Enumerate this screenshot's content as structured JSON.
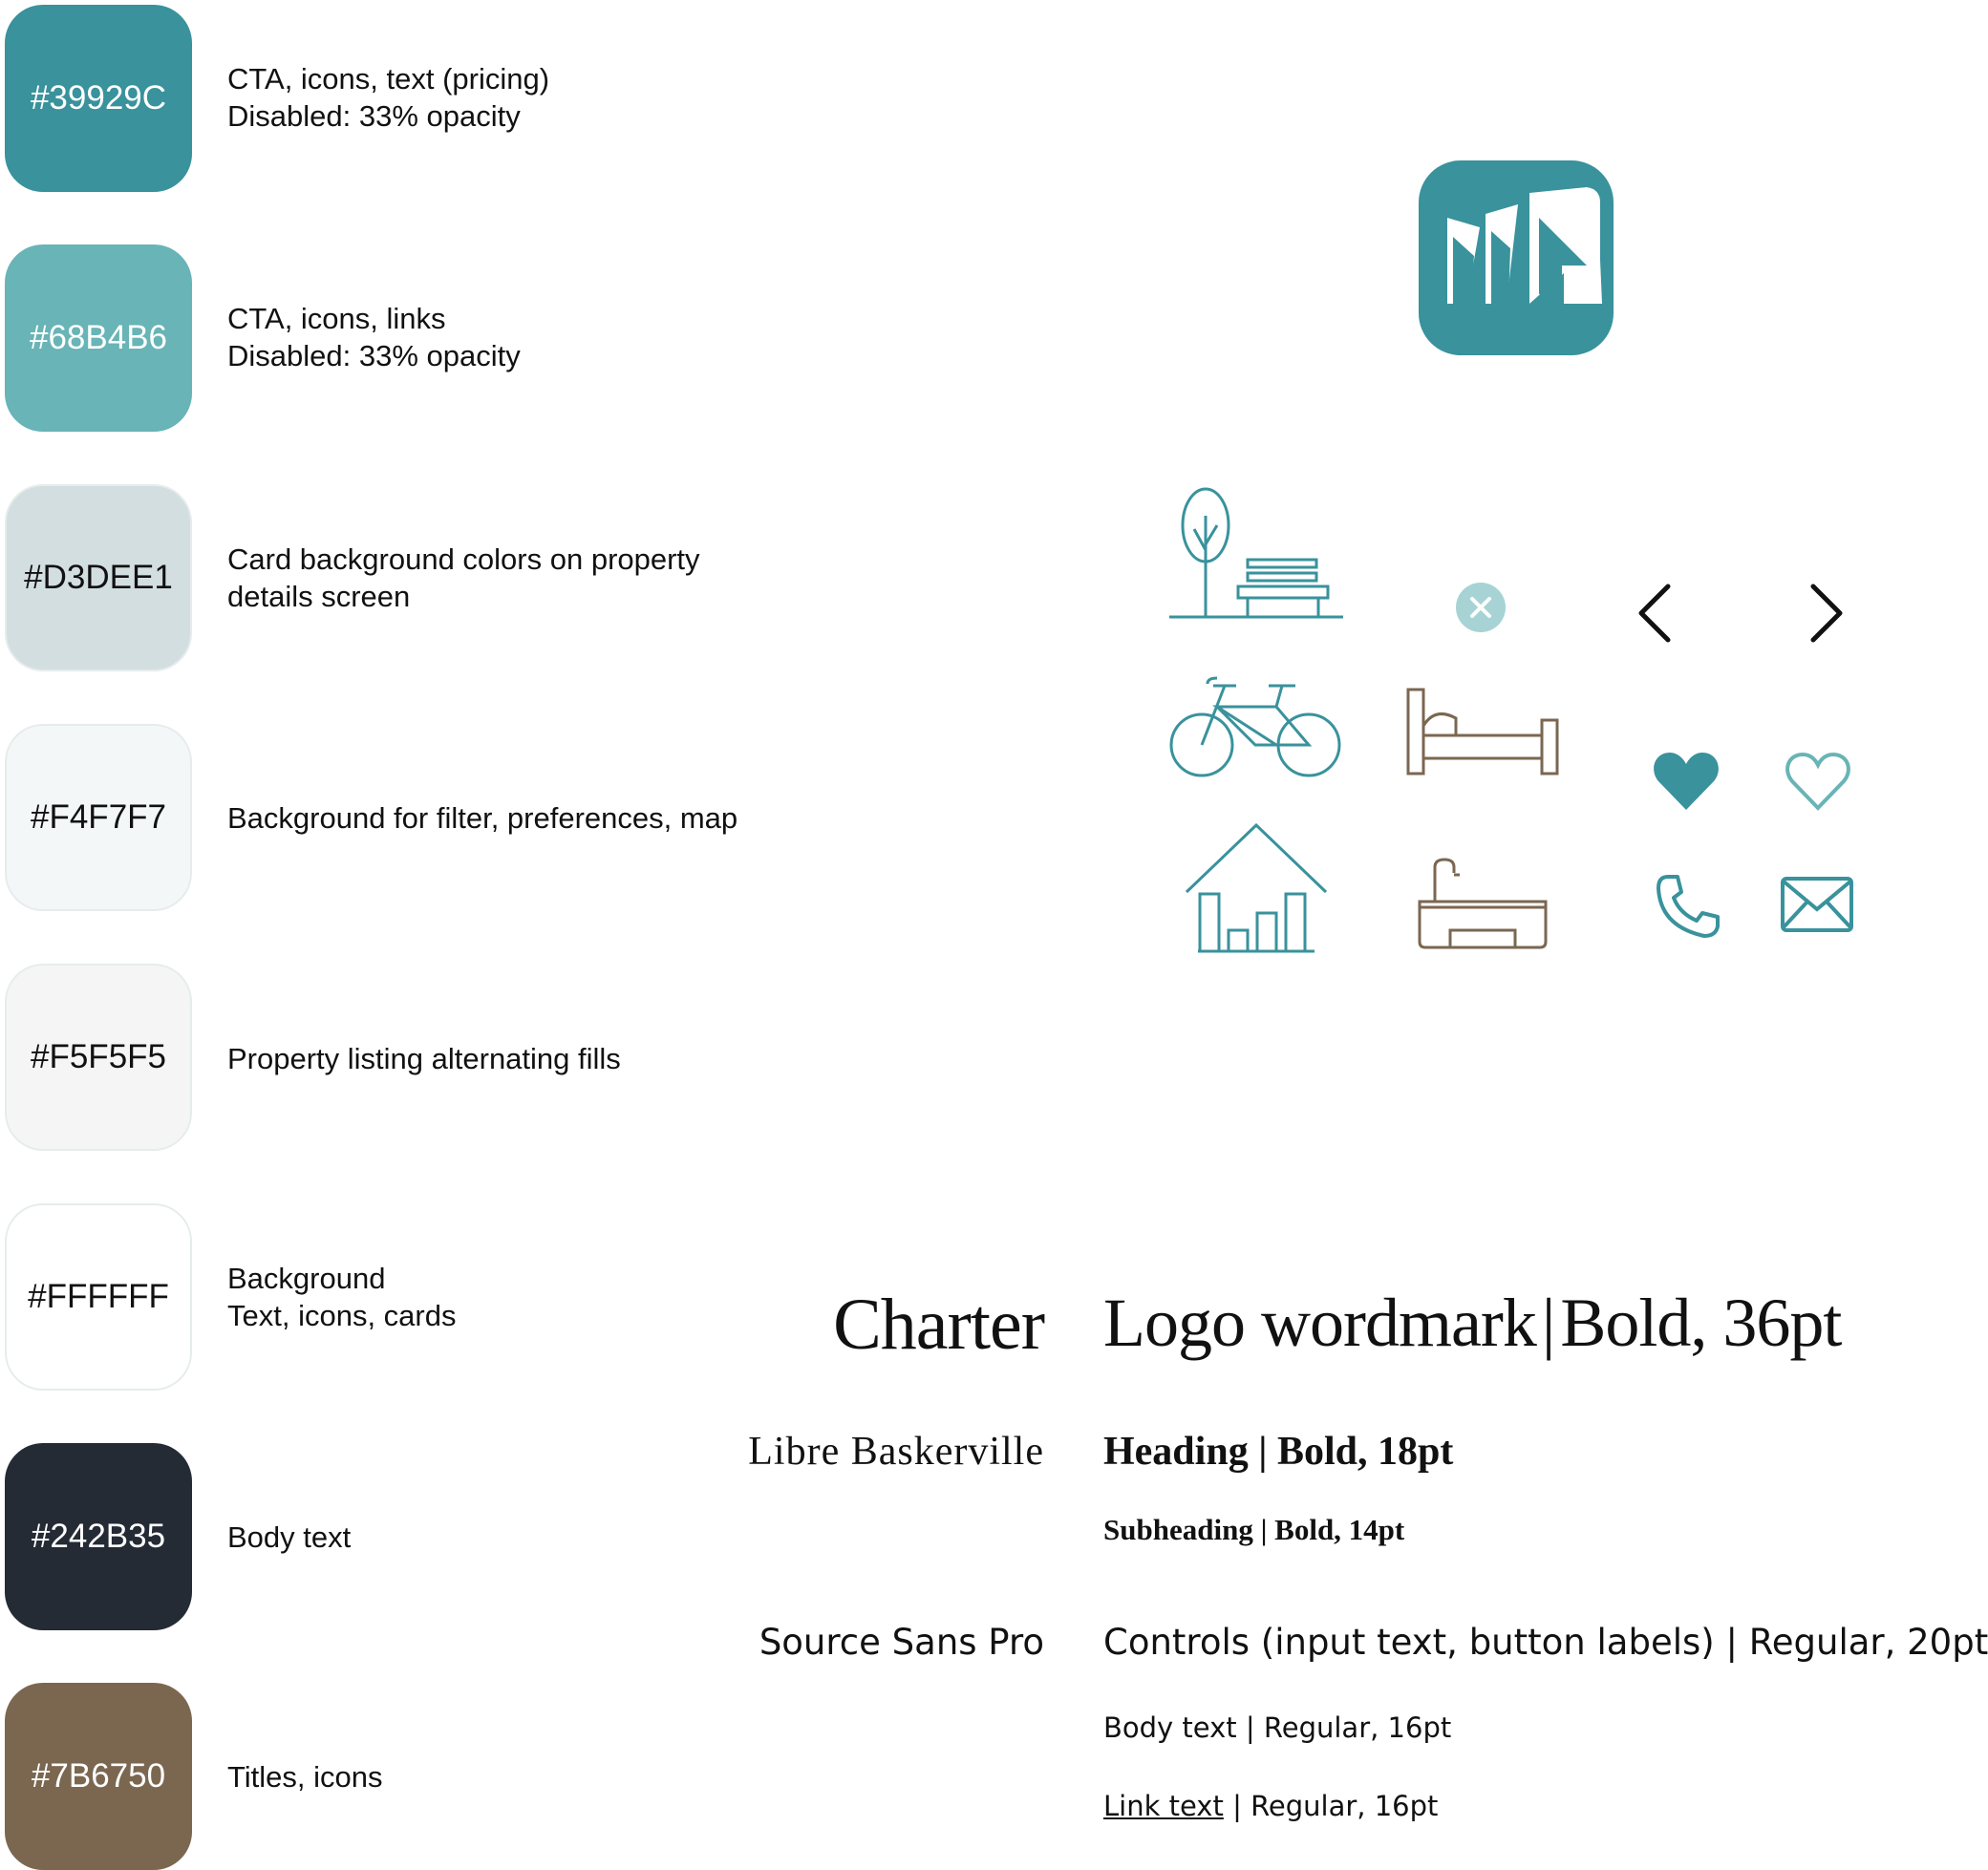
{
  "palette": [
    {
      "hex": "#39929C",
      "label": "#39929C",
      "text_color": "#FFFFFF",
      "lines": [
        "CTA, icons, text (pricing)",
        "Disabled: 33% opacity"
      ]
    },
    {
      "hex": "#68B4B6",
      "label": "#68B4B6",
      "text_color": "#FFFFFF",
      "lines": [
        "CTA, icons, links",
        "Disabled: 33% opacity"
      ]
    },
    {
      "hex": "#D3DEE1",
      "label": "#D3DEE1",
      "text_color": "#111111",
      "lines": [
        "Card background colors on property",
        "details screen"
      ]
    },
    {
      "hex": "#F4F7F7",
      "label": "#F4F7F7",
      "text_color": "#111111",
      "lines": [
        "Background for filter, preferences, map"
      ]
    },
    {
      "hex": "#F5F5F5",
      "label": "#F5F5F5",
      "text_color": "#111111",
      "lines": [
        "Property listing alternating fills"
      ]
    },
    {
      "hex": "#FFFFFF",
      "label": "#FFFFFF",
      "text_color": "#111111",
      "lines": [
        "Background",
        "Text, icons, cards"
      ]
    },
    {
      "hex": "#242B35",
      "label": "#242B35",
      "text_color": "#FFFFFF",
      "lines": [
        "Body text"
      ]
    },
    {
      "hex": "#7B6750",
      "label": "#7B6750",
      "text_color": "#FFFFFF",
      "lines": [
        "Titles, icons"
      ]
    }
  ],
  "icons": [
    "app-logo-icon",
    "park-bench-icon",
    "clear-circle-icon",
    "chevron-left-icon",
    "chevron-right-icon",
    "bicycle-icon",
    "bed-icon",
    "heart-filled-icon",
    "heart-outline-icon",
    "house-icon",
    "bathtub-icon",
    "phone-icon",
    "mail-icon"
  ],
  "typography": {
    "charter": {
      "font": "Charter",
      "spec_main": "Logo wordmark",
      "sep": "|",
      "spec_detail": "Bold, 36pt"
    },
    "baskerville": {
      "font": "Libre Baskerville",
      "heading": {
        "label": "Heading",
        "sep": "|",
        "detail": "Bold, 18pt"
      },
      "subheading": {
        "label": "Subheading",
        "sep": "|",
        "detail": "Bold, 14pt"
      }
    },
    "source_sans": {
      "font": "Source Sans Pro",
      "controls": {
        "label": "Controls (input text, button labels)",
        "sep": "|",
        "detail": "Regular, 20pt"
      },
      "body": {
        "label": "Body text",
        "sep": "|",
        "detail": "Regular, 16pt"
      },
      "link": {
        "label": "Link text",
        "sep": "|",
        "detail": "Regular, 16pt"
      }
    }
  },
  "colors": {
    "teal": "#39929C",
    "teal_light": "#68B4B6",
    "teal_pale": "#A7D3D4",
    "brown": "#7B6750",
    "ink": "#111111"
  }
}
